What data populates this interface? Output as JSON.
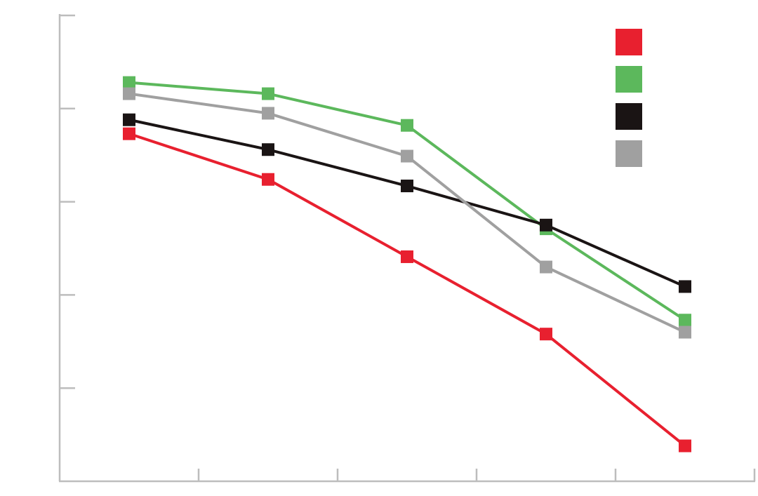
{
  "chart_data": {
    "type": "line",
    "x": [
      0.5,
      1.5,
      2.5,
      3.5,
      4.5
    ],
    "xlim": [
      0,
      5
    ],
    "xticks": [
      1,
      2,
      3,
      4
    ],
    "ylim": [
      0,
      5
    ],
    "yticks": [
      1,
      2,
      3,
      4
    ],
    "legend": "upper right",
    "series": [
      {
        "color": "#e8202f",
        "values": [
          3.73,
          3.24,
          2.41,
          1.58,
          0.38
        ]
      },
      {
        "color": "#5cb85c",
        "values": [
          4.28,
          4.16,
          3.82,
          2.71,
          1.73
        ]
      },
      {
        "color": "#1a1414",
        "values": [
          3.88,
          3.56,
          3.17,
          2.75,
          2.09
        ]
      },
      {
        "color": "#a0a0a0",
        "values": [
          4.16,
          3.95,
          3.49,
          2.3,
          1.6
        ]
      }
    ]
  }
}
